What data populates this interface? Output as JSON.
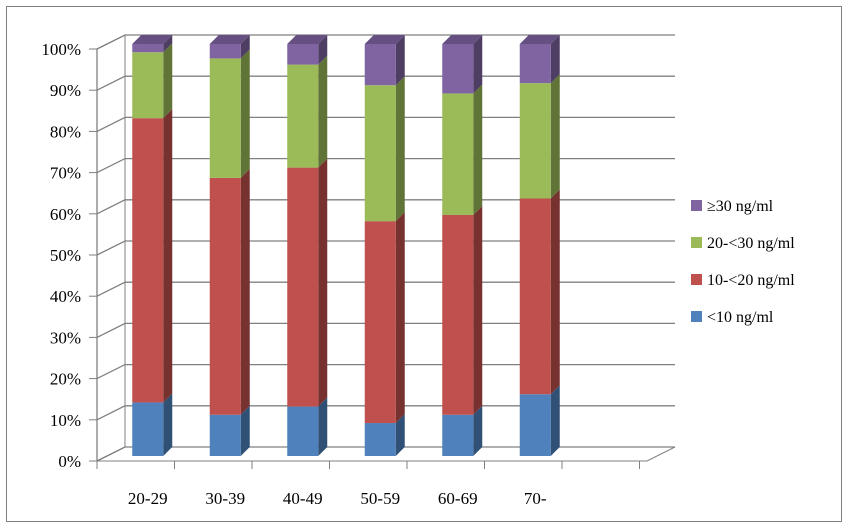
{
  "chart_data": {
    "type": "bar",
    "stacked": true,
    "normalized": true,
    "style": "3d-column",
    "categories": [
      "20-29",
      "30-39",
      "40-49",
      "50-59",
      "60-69",
      "70-"
    ],
    "series": [
      {
        "name": "<10 ng/ml",
        "color": "#4f81bd",
        "values": [
          13,
          10,
          12,
          8,
          10,
          15
        ]
      },
      {
        "name": "10-<20 ng/ml",
        "color": "#c0504d",
        "values": [
          69,
          57.5,
          58,
          49,
          48.5,
          47.5
        ]
      },
      {
        "name": "20-<30 ng/ml",
        "color": "#9bbb59",
        "values": [
          16,
          29,
          25,
          33,
          29.5,
          28
        ]
      },
      {
        "name": "≥30 ng/ml",
        "color": "#8064a2",
        "values": [
          2,
          3.5,
          5,
          10,
          12,
          9.5
        ]
      }
    ],
    "y_tick_labels": [
      "0%",
      "10%",
      "20%",
      "30%",
      "40%",
      "50%",
      "60%",
      "70%",
      "80%",
      "90%",
      "100%"
    ],
    "ylim": [
      0,
      100
    ],
    "grid": true,
    "legend_position": "right"
  }
}
